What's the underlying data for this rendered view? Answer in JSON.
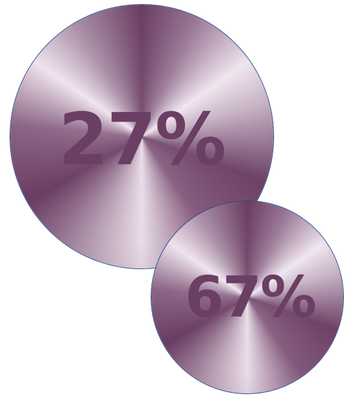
{
  "stats": [
    {
      "label": "27%"
    },
    {
      "label": "67%"
    }
  ],
  "colors": {
    "text": "#6b3e63",
    "circle_border": "#2f4e8c",
    "gradient_dark": "#6a3d62",
    "gradient_light": "#f0e6ef"
  }
}
